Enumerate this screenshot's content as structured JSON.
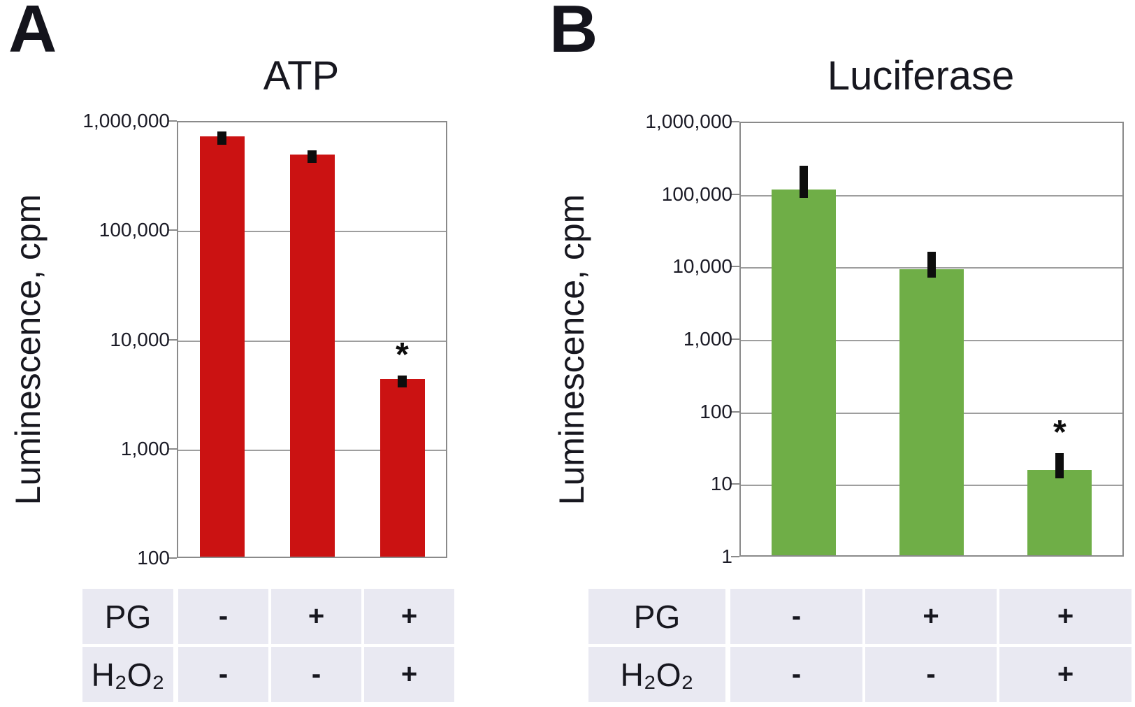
{
  "figure": {
    "panels": [
      {
        "letter": "A",
        "table": {
          "rows": [
            {
              "label": "H₂O₂",
              "is_last": true
            },
            {
              "label": "PG",
              "is_last": false
            }
          ]
        }
      },
      {
        "letter": "B",
        "table": {
          "rows": [
            {
              "label": "H₂O₂",
              "is_last": true
            },
            {
              "label": "PG",
              "is_last": false
            }
          ]
        }
      }
    ]
  },
  "chart_data": [
    {
      "type": "bar",
      "panel": "A",
      "title": "ATP",
      "ylabel": "Luminescence, cpm",
      "yscale": "log",
      "ylim": [
        100,
        1000000
      ],
      "yticks": [
        {
          "value": 1000000,
          "label": "1,000,000"
        },
        {
          "value": 100000,
          "label": "100,000"
        },
        {
          "value": 10000,
          "label": "10,000"
        },
        {
          "value": 1000,
          "label": "1,000"
        },
        {
          "value": 100,
          "label": "100"
        }
      ],
      "categories": [
        "PG− / H₂O₂−",
        "PG+ / H₂O₂−",
        "PG+ / H₂O₂+"
      ],
      "values": [
        700000,
        480000,
        4200
      ],
      "error_bar_tops": [
        800000,
        540000,
        4700
      ],
      "significance_markers": [
        "",
        "",
        "*"
      ],
      "bar_color": "#cb1212",
      "grid": true,
      "legend": false,
      "condition_table": {
        "row_labels": [
          "PG",
          "H₂O₂"
        ],
        "rows": [
          [
            "-",
            "+",
            "+"
          ],
          [
            "-",
            "-",
            "+"
          ]
        ]
      }
    },
    {
      "type": "bar",
      "panel": "B",
      "title": "Luciferase",
      "ylabel": "Luminescence, cpm",
      "yscale": "log",
      "ylim": [
        1,
        1000000
      ],
      "yticks": [
        {
          "value": 1000000,
          "label": "1,000,000"
        },
        {
          "value": 100000,
          "label": "100,000"
        },
        {
          "value": 10000,
          "label": "10,000"
        },
        {
          "value": 1000,
          "label": "1,000"
        },
        {
          "value": 100,
          "label": "100"
        },
        {
          "value": 10,
          "label": "10"
        },
        {
          "value": 1,
          "label": "1"
        }
      ],
      "categories": [
        "PG− / H₂O₂−",
        "PG+ / H₂O₂−",
        "PG+ / H₂O₂+"
      ],
      "values": [
        110000,
        8800,
        15
      ],
      "error_bar_tops": [
        245000,
        16000,
        27
      ],
      "significance_markers": [
        "",
        "",
        "*"
      ],
      "bar_color": "#6fae47",
      "grid": true,
      "legend": false,
      "condition_table": {
        "row_labels": [
          "PG",
          "H₂O₂"
        ],
        "rows": [
          [
            "-",
            "+",
            "+"
          ],
          [
            "-",
            "-",
            "+"
          ]
        ]
      }
    }
  ]
}
